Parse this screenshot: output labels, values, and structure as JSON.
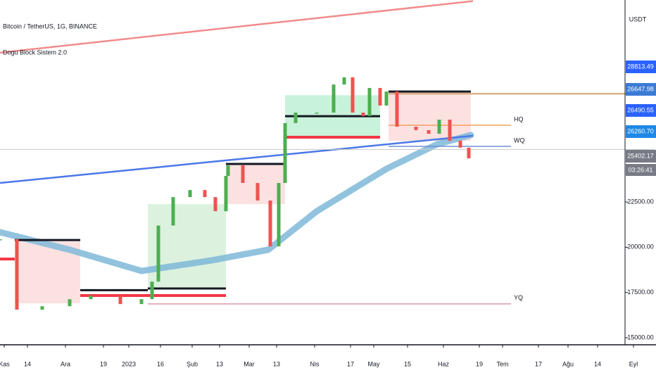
{
  "chart_data": {
    "type": "candlestick",
    "title": "Bitcoin / TetherUS, 1G, BINANCE",
    "subtitle": "Dogu Block Sistem 2.0",
    "currency": "USDT",
    "xlim": [
      0,
      310
    ],
    "xticks": [
      {
        "value": 2,
        "label": "Kas"
      },
      {
        "value": 13,
        "label": "14"
      },
      {
        "value": 31,
        "label": "Ara"
      },
      {
        "value": 49,
        "label": "19"
      },
      {
        "value": 61,
        "label": "2023"
      },
      {
        "value": 76,
        "label": "16"
      },
      {
        "value": 91,
        "label": "Şub"
      },
      {
        "value": 104,
        "label": "13"
      },
      {
        "value": 118,
        "label": "Mar"
      },
      {
        "value": 131,
        "label": "13"
      },
      {
        "value": 149,
        "label": "Nis"
      },
      {
        "value": 166,
        "label": "17"
      },
      {
        "value": 177,
        "label": "May"
      },
      {
        "value": 193,
        "label": "15"
      },
      {
        "value": 210,
        "label": "Haz"
      },
      {
        "value": 227,
        "label": "19"
      },
      {
        "value": 238,
        "label": "Tem"
      },
      {
        "value": 255,
        "label": "17"
      },
      {
        "value": 269,
        "label": "Ağu"
      },
      {
        "value": 283,
        "label": "14"
      },
      {
        "value": 300,
        "label": "Eyl"
      }
    ],
    "ylim": [
      14610,
      33660
    ],
    "yticks": [
      {
        "value": 15000,
        "label": "15000.00"
      },
      {
        "value": 17500,
        "label": "17500.00"
      },
      {
        "value": 20000,
        "label": "20000.00"
      },
      {
        "value": 22500,
        "label": "22500.00"
      }
    ],
    "up_color": "#4caf50",
    "down_color": "#ef5350",
    "x": [
      0,
      8,
      20,
      33,
      43,
      57,
      67,
      72,
      75,
      82,
      90,
      97,
      102,
      107,
      108,
      115,
      122,
      128,
      132,
      135,
      140,
      150,
      158,
      163,
      167,
      172,
      175,
      180,
      183,
      188,
      197,
      203,
      208,
      213,
      218,
      222
    ],
    "values": [
      20440,
      16550,
      16740,
      17130,
      17330,
      16860,
      17130,
      18100,
      21200,
      22770,
      23160,
      22770,
      21990,
      23940,
      24520,
      23550,
      22580,
      20050,
      23550,
      26860,
      27440,
      27440,
      28990,
      29390,
      27440,
      27250,
      28800,
      27830,
      28600,
      26660,
      26470,
      26270,
      27050,
      25880,
      25500,
      24910
    ],
    "band": {
      "color": "#7fb8d8",
      "x": [
        0,
        33,
        67,
        100,
        127,
        150,
        183,
        207,
        223
      ],
      "values": [
        20830,
        19860,
        18690,
        19270,
        19860,
        21990,
        24330,
        25690,
        26200
      ]
    },
    "zones": [
      {
        "x": [
          7,
          38
        ],
        "y": [
          16900,
          20400
        ],
        "color": "#fcdcdc"
      },
      {
        "x": [
          70,
          107
        ],
        "y": [
          17720,
          22380
        ],
        "color": "#d6f0d8"
      },
      {
        "x": [
          107,
          135
        ],
        "y": [
          22380,
          24600
        ],
        "color": "#fcdcdc"
      },
      {
        "x": [
          135,
          180
        ],
        "y": [
          26080,
          28400
        ],
        "color": "#bff0d4"
      },
      {
        "x": [
          184,
          223
        ],
        "y": [
          25880,
          28600
        ],
        "color": "#fcdcdc"
      }
    ],
    "lines": [
      {
        "x": [
          0,
          224
        ],
        "y": [
          30750,
          33600
        ],
        "color": "#f28b8b",
        "width": 2.5
      },
      {
        "x": [
          0,
          224
        ],
        "y": [
          23550,
          26160
        ],
        "color": "#4a78e8",
        "width": 2.5
      },
      {
        "x": [
          0,
          310
        ],
        "y": [
          25402,
          25402
        ],
        "color": "#c8c8c8",
        "width": 1
      },
      {
        "x": [
          7,
          38
        ],
        "y": [
          20400,
          20400
        ],
        "color": "#131722",
        "width": 3
      },
      {
        "x": [
          38,
          70
        ],
        "y": [
          17630,
          17630
        ],
        "color": "#131722",
        "width": 3
      },
      {
        "x": [
          70,
          107
        ],
        "y": [
          17720,
          17720
        ],
        "color": "#131722",
        "width": 3
      },
      {
        "x": [
          107,
          135
        ],
        "y": [
          24600,
          24600
        ],
        "color": "#131722",
        "width": 3
      },
      {
        "x": [
          135,
          180
        ],
        "y": [
          27240,
          27240
        ],
        "color": "#131722",
        "width": 3
      },
      {
        "x": [
          184,
          223
        ],
        "y": [
          28600,
          28600
        ],
        "color": "#131722",
        "width": 3
      },
      {
        "x": [
          0,
          7
        ],
        "y": [
          19350,
          19350
        ],
        "color": "#f23645",
        "width": 4
      },
      {
        "x": [
          38,
          107
        ],
        "y": [
          17330,
          17330
        ],
        "color": "#f23645",
        "width": 4
      },
      {
        "x": [
          135,
          180
        ],
        "y": [
          26080,
          26080
        ],
        "color": "#f23645",
        "width": 4
      },
      {
        "x": [
          184,
          310
        ],
        "y": [
          28480,
          28480
        ],
        "color": "#d4a373",
        "width": 2
      },
      {
        "x": [
          184,
          242
        ],
        "y": [
          26740,
          26740
        ],
        "color": "#f5a05a",
        "width": 1.5,
        "label": "HQ"
      },
      {
        "x": [
          184,
          242
        ],
        "y": [
          25574,
          25574
        ],
        "color": "#6f8fd6",
        "width": 1.5,
        "label": "WQ"
      },
      {
        "x": [
          70,
          242
        ],
        "y": [
          16870,
          16870
        ],
        "color": "#d99aa8",
        "width": 1.5,
        "label": "YQ"
      }
    ],
    "price_labels": [
      {
        "value": 28813.49,
        "label": "28813.49",
        "color": "#2962ff"
      },
      {
        "value": 26647.98,
        "label": "26647.98",
        "color": "#3a7bd5"
      },
      {
        "value": 26490.55,
        "label": "26490.55",
        "color": "#2962ff"
      },
      {
        "value": 26260.7,
        "label": "26260.70",
        "color": "#1e88e5"
      },
      {
        "value": 25402.17,
        "label": "25402.17",
        "color": "#787b86"
      }
    ],
    "timer": "03:26:41"
  }
}
